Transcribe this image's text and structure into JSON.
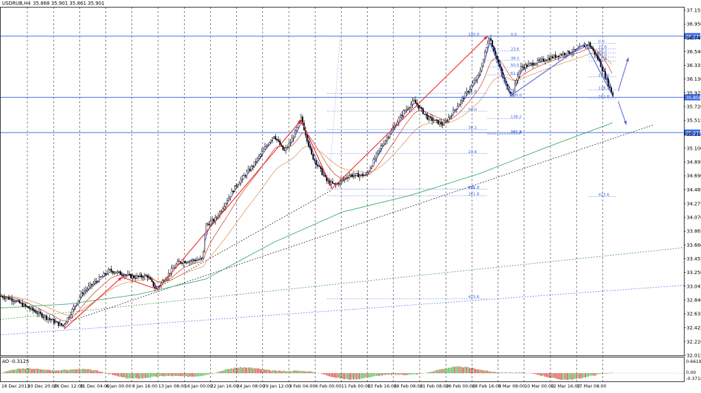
{
  "header": {
    "symbol_tf": "USDRUB,H4",
    "ohlc": "35.868 35.901 35.861 35.901"
  },
  "oscillator": {
    "label": "AO -0.3125",
    "ticks": [
      "0.6619",
      "0.00",
      "-0.3718"
    ]
  },
  "price_axis": [
    "37.155",
    "36.950",
    "36.745",
    "36.540",
    "36.335",
    "36.130",
    "35.925",
    "35.720",
    "35.515",
    "35.310",
    "35.100",
    "34.895",
    "34.690",
    "34.485",
    "34.275",
    "34.070",
    "33.865",
    "33.660",
    "33.455",
    "33.250",
    "33.045",
    "32.840",
    "32.635",
    "32.425",
    "32.220",
    "32.015"
  ],
  "price_markers": [
    {
      "text": "36.770",
      "value": 36.77
    },
    {
      "text": "35.858",
      "value": 35.858
    },
    {
      "text": "35.333",
      "value": 35.333
    }
  ],
  "time_axis": [
    "18 Dec 2013",
    "20 Dec 20:00",
    "26 Dec 12:00",
    "31 Dec 04:00",
    "6 Jan 00:00",
    "8 Jan 16:00",
    "13 Jan 08:00",
    "16 Jan 00:00",
    "22 Jan 16:00",
    "24 Jan 08:00",
    "29 Jan 12:00",
    "3 Feb 04:00",
    "6 Feb 00:00",
    "11 Feb 00:00",
    "13 Feb 16:00",
    "18 Feb 08:00",
    "21 Feb 08:00",
    "26 Feb 00:00",
    "28 Feb 16:00",
    "5 Mar 08:00",
    "10 Mar 00:00",
    "12 Mar 16:00",
    "17 Mar 08:00"
  ],
  "fib_left": {
    "levels": [
      "100.0",
      "61.8",
      "50.0",
      "38.2",
      "23.6",
      "0.0",
      "161.8",
      "261.8",
      "423.6"
    ],
    "values": [
      36.77,
      35.92,
      35.65,
      35.38,
      35.02,
      34.49,
      34.49,
      34.39,
      32.86
    ]
  },
  "fib_mid": {
    "levels": [
      "0.0",
      "23.6",
      "38.2",
      "50.0",
      "61.8",
      "100.0",
      "138.2",
      "161.8",
      "261.8"
    ],
    "values": [
      36.77,
      36.55,
      36.41,
      36.31,
      36.19,
      35.86,
      35.54,
      35.32,
      35.31
    ]
  },
  "fib_right": {
    "levels": [
      "0.0",
      "23.6",
      "38.2",
      "50.0",
      "61.8",
      "100.0",
      "138.2",
      "161.8",
      "423.6"
    ],
    "values": [
      36.66,
      36.58,
      36.52,
      36.46,
      36.4,
      36.16,
      35.97,
      35.84,
      34.38
    ]
  },
  "colors": {
    "bg": "#ffffff",
    "candle": "#000000",
    "hline": "#4169e1",
    "ma_fast": "#2233cc",
    "ma_mid": "#cc3311",
    "ma_slow": "#d98a4a",
    "ma_long": "#3aa86b",
    "arrow_red": "#ee2222",
    "arrow_blue": "#5566dd",
    "ao_up": "#33aa33",
    "ao_down": "#dd2222"
  },
  "chart_data": {
    "type": "line",
    "series": [
      {
        "x": [
          "18 Dec",
          "20 Dec",
          "24 Dec",
          "26 Dec",
          "31 Dec",
          "6 Jan",
          "8 Jan",
          "10 Jan",
          "13 Jan",
          "16 Jan",
          "17 Jan",
          "20 Jan",
          "22 Jan",
          "24 Jan",
          "27 Jan",
          "29 Jan",
          "30 Jan",
          "31 Jan",
          "3 Feb",
          "4 Feb",
          "6 Feb",
          "7 Feb",
          "11 Feb",
          "13 Feb",
          "14 Feb",
          "18 Feb",
          "19 Feb",
          "21 Feb",
          "24 Feb",
          "26 Feb",
          "27 Feb",
          "28 Feb",
          "3 Mar",
          "4 Mar",
          "5 Mar",
          "6 Mar",
          "10 Mar",
          "11 Mar",
          "12 Mar",
          "14 Mar",
          "17 Mar",
          "18 Mar"
        ],
        "values": [
          32.9,
          32.85,
          32.62,
          32.45,
          32.95,
          33.28,
          33.18,
          33.2,
          33.0,
          33.4,
          33.45,
          33.95,
          34.05,
          34.55,
          34.85,
          35.3,
          35.05,
          35.2,
          35.55,
          35.0,
          34.6,
          34.55,
          34.7,
          34.7,
          35.1,
          35.65,
          35.8,
          35.55,
          35.45,
          35.9,
          36.2,
          36.77,
          36.35,
          36.05,
          35.9,
          36.3,
          36.4,
          36.5,
          36.55,
          36.66,
          36.4,
          35.86
        ]
      }
    ],
    "ylim": [
      32.015,
      37.155
    ],
    "grid": true
  }
}
